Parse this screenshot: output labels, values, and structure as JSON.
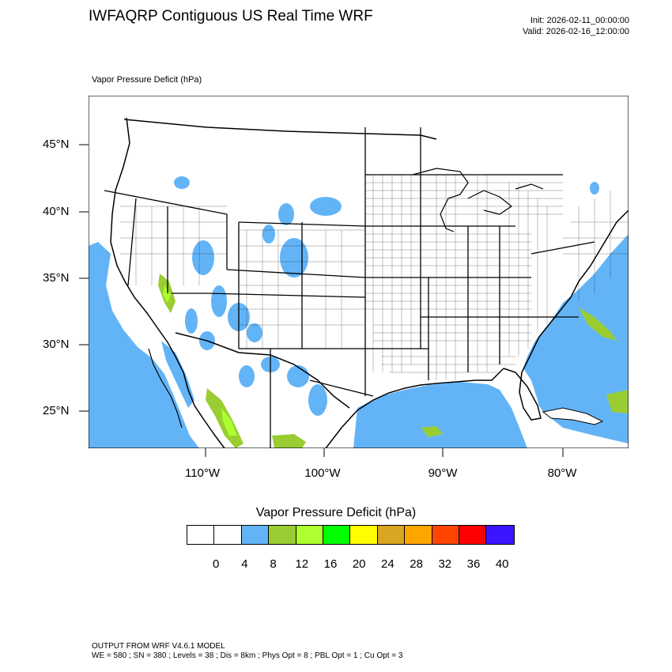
{
  "header": {
    "title": "IWFAQRP Contiguous US Real Time WRF",
    "init": "Init: 2026-02-11_00:00:00",
    "valid": "Valid: 2026-02-16_12:00:00"
  },
  "map": {
    "variable_label": "Vapor Pressure Deficit   (hPa)",
    "lat_labels": [
      "45°N",
      "40°N",
      "35°N",
      "30°N",
      "25°N"
    ],
    "lon_labels": [
      "110°W",
      "100°W",
      "90°W",
      "80°W"
    ],
    "colors": {
      "ocean_lowvpd": "#63b4f7",
      "band_8_12": "#9acd32",
      "band_12_16": "#adff2f",
      "land": "#ffffff",
      "boundary": "#000000"
    }
  },
  "colorbar": {
    "title": "Vapor Pressure Deficit  (hPa)",
    "labels": [
      "0",
      "4",
      "8",
      "12",
      "16",
      "20",
      "24",
      "28",
      "32",
      "36",
      "40"
    ],
    "colors": [
      "#ffffff",
      "#ffffff",
      "#63b4f7",
      "#9acd32",
      "#adff2f",
      "#00ff00",
      "#ffff00",
      "#daa520",
      "#ffa500",
      "#ff4500",
      "#ff0000",
      "#3c14ff"
    ]
  },
  "footer": {
    "line1": "OUTPUT FROM WRF V4.6.1 MODEL",
    "line2": "WE = 580 ; SN = 380 ; Levels = 38 ; Dis = 8km ; Phys Opt = 8 ; PBL Opt = 1 ; Cu Opt = 3"
  }
}
